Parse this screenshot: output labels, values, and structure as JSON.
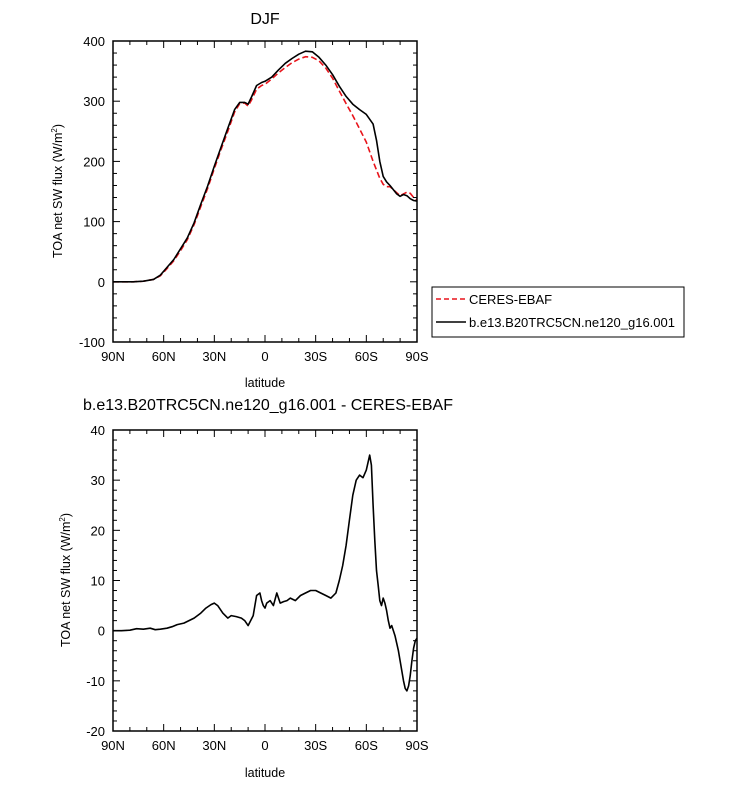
{
  "chart_data": [
    {
      "type": "line",
      "title": "DJF",
      "xlabel": "latitude",
      "ylabel_prefix": "TOA net SW flux (W/m",
      "ylabel_sup": "2",
      "ylabel_suffix": ")",
      "xlim": [
        90,
        -90
      ],
      "ylim": [
        -100,
        400
      ],
      "x_ticks": [
        {
          "value": 90,
          "label": "90N"
        },
        {
          "value": 60,
          "label": "60N"
        },
        {
          "value": 30,
          "label": "30N"
        },
        {
          "value": 0,
          "label": "0"
        },
        {
          "value": -30,
          "label": "30S"
        },
        {
          "value": -60,
          "label": "60S"
        },
        {
          "value": -90,
          "label": "90S"
        }
      ],
      "y_ticks": [
        -100,
        0,
        100,
        200,
        300,
        400
      ],
      "legend": {
        "placement": "right"
      },
      "series": [
        {
          "name": "CERES-EBAF",
          "color": "#e8141b",
          "dash": "dashed",
          "x": [
            90,
            84,
            78,
            72,
            66,
            62,
            58,
            54,
            50,
            46,
            42,
            38,
            34,
            30,
            26,
            22,
            18,
            15,
            12,
            10,
            8,
            5,
            2,
            0,
            -4,
            -8,
            -12,
            -16,
            -20,
            -24,
            -28,
            -32,
            -36,
            -40,
            -44,
            -48,
            -52,
            -56,
            -60,
            -64,
            -68,
            -70,
            -72,
            -74,
            -76,
            -78,
            -80,
            -82,
            -84,
            -86,
            -88,
            -90
          ],
          "y": [
            0,
            0,
            0,
            1,
            4,
            10,
            22,
            35,
            52,
            70,
            95,
            125,
            155,
            188,
            220,
            250,
            282,
            296,
            297,
            292,
            302,
            320,
            326,
            328,
            337,
            347,
            356,
            364,
            370,
            374,
            373,
            367,
            355,
            338,
            317,
            296,
            276,
            254,
            232,
            200,
            172,
            162,
            158,
            158,
            153,
            148,
            143,
            146,
            149,
            147,
            140,
            136
          ]
        },
        {
          "name": "b.e13.B20TRC5CN.ne120_g16.001",
          "color": "#000000",
          "dash": "solid",
          "x": [
            90,
            84,
            78,
            72,
            66,
            62,
            58,
            54,
            50,
            46,
            42,
            38,
            34,
            30,
            26,
            22,
            18,
            15,
            12,
            10,
            8,
            5,
            2,
            0,
            -4,
            -8,
            -12,
            -16,
            -20,
            -24,
            -28,
            -32,
            -36,
            -40,
            -44,
            -48,
            -52,
            -56,
            -60,
            -64,
            -66,
            -68,
            -70,
            -72,
            -74,
            -76,
            -78,
            -80,
            -82,
            -84,
            -86,
            -88,
            -90
          ],
          "y": [
            0,
            0,
            0,
            1,
            4,
            11,
            24,
            37,
            55,
            73,
            98,
            129,
            159,
            192,
            224,
            255,
            286,
            298,
            298,
            295,
            307,
            326,
            331,
            333,
            340,
            352,
            363,
            371,
            378,
            383,
            382,
            373,
            360,
            344,
            325,
            308,
            295,
            286,
            278,
            262,
            235,
            200,
            175,
            166,
            160,
            153,
            146,
            142,
            145,
            143,
            138,
            135,
            134
          ]
        }
      ]
    },
    {
      "type": "line",
      "title": "b.e13.B20TRC5CN.ne120_g16.001 - CERES-EBAF",
      "xlabel": "latitude",
      "ylabel_prefix": "TOA net SW flux (W/m",
      "ylabel_sup": "2",
      "ylabel_suffix": ")",
      "xlim": [
        90,
        -90
      ],
      "ylim": [
        -20,
        40
      ],
      "x_ticks": [
        {
          "value": 90,
          "label": "90N"
        },
        {
          "value": 60,
          "label": "60N"
        },
        {
          "value": 30,
          "label": "30N"
        },
        {
          "value": 0,
          "label": "0"
        },
        {
          "value": -30,
          "label": "30S"
        },
        {
          "value": -60,
          "label": "60S"
        },
        {
          "value": -90,
          "label": "90S"
        }
      ],
      "y_ticks": [
        -20,
        -10,
        0,
        10,
        20,
        30,
        40
      ],
      "series": [
        {
          "name": "",
          "color": "#000000",
          "dash": "solid",
          "x": [
            90,
            85,
            80,
            76,
            72,
            68,
            65,
            62,
            58,
            55,
            52,
            48,
            45,
            42,
            38,
            35,
            32,
            30,
            28,
            25,
            22,
            20,
            17,
            14,
            12,
            10,
            7,
            5,
            3,
            2,
            1,
            0,
            -1,
            -3,
            -5,
            -7,
            -9,
            -11,
            -13,
            -15,
            -18,
            -21,
            -24,
            -27,
            -30,
            -33,
            -36,
            -39,
            -42,
            -44,
            -46,
            -48,
            -50,
            -52,
            -54,
            -56,
            -58,
            -60,
            -62,
            -63,
            -64,
            -65,
            -66,
            -67,
            -68,
            -69,
            -70,
            -71,
            -72,
            -73,
            -74,
            -75,
            -76,
            -77,
            -78,
            -79,
            -80,
            -81,
            -82,
            -83,
            -84,
            -85,
            -86,
            -87,
            -88,
            -89,
            -90
          ],
          "y": [
            0,
            0,
            0.1,
            0.4,
            0.3,
            0.5,
            0.2,
            0.3,
            0.5,
            0.8,
            1.2,
            1.5,
            2.0,
            2.5,
            3.5,
            4.5,
            5.2,
            5.5,
            5.0,
            3.5,
            2.5,
            3.0,
            2.8,
            2.5,
            2.0,
            1.0,
            3.0,
            7.0,
            7.5,
            6.0,
            5.0,
            4.5,
            5.5,
            6.0,
            5.0,
            7.5,
            5.5,
            5.8,
            6.0,
            6.5,
            6.0,
            7.0,
            7.5,
            8.0,
            8.0,
            7.5,
            7.0,
            6.5,
            7.5,
            10.0,
            13.0,
            17.0,
            22.0,
            27.0,
            30.0,
            31.0,
            30.5,
            32.0,
            35.0,
            33.0,
            25.0,
            18.0,
            12.0,
            9.0,
            6.0,
            5.0,
            6.5,
            5.5,
            4.0,
            2.0,
            0.5,
            1.0,
            0.0,
            -1.0,
            -2.5,
            -4.0,
            -6.0,
            -8.0,
            -10.0,
            -11.5,
            -12.0,
            -11.0,
            -9.0,
            -6.0,
            -3.5,
            -2.0,
            -1.5
          ]
        }
      ]
    }
  ]
}
